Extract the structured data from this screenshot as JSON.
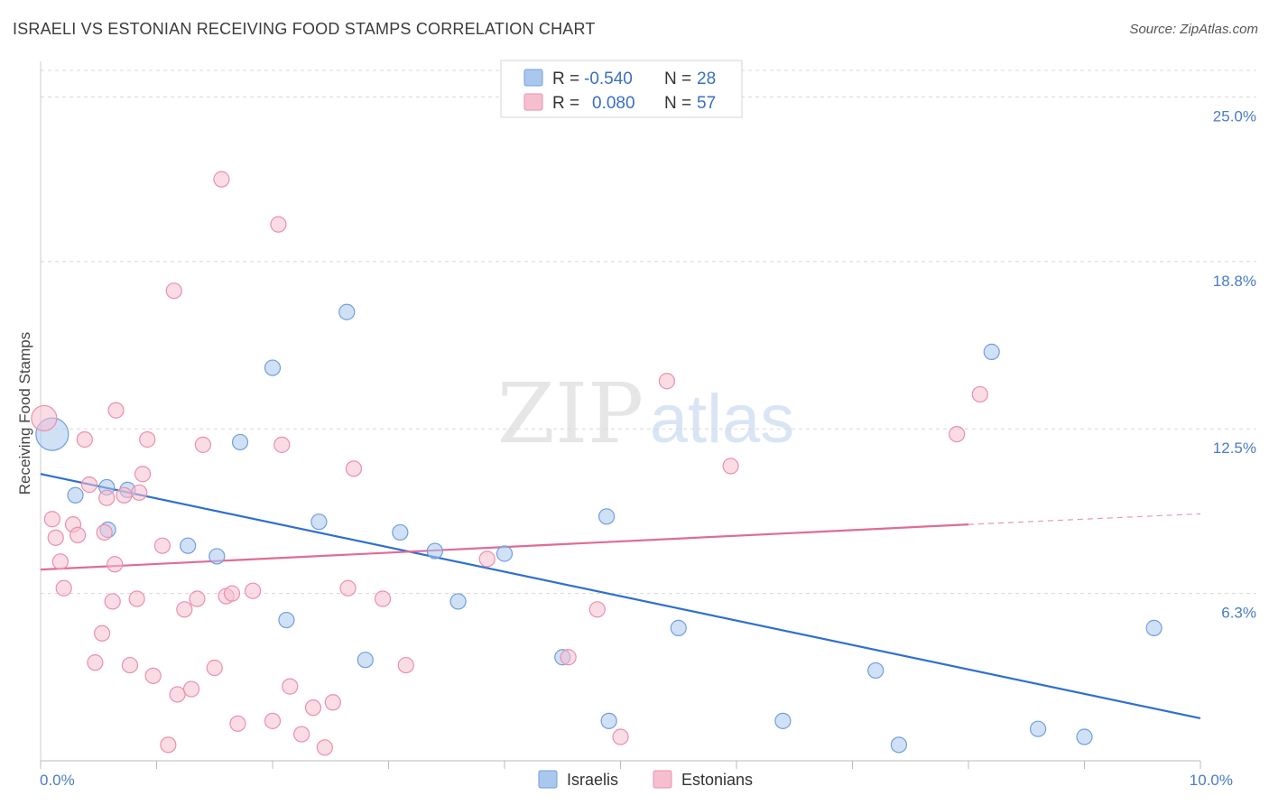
{
  "title": "ISRAELI VS ESTONIAN RECEIVING FOOD STAMPS CORRELATION CHART",
  "source": "Source: ZipAtlas.com",
  "watermark": {
    "zip": "ZIP",
    "atlas": "atlas"
  },
  "colors": {
    "israeli_fill": "#aac8ee",
    "israeli_stroke": "#6f9ee0",
    "israeli_line": "#2f6fd0",
    "estonian_fill": "#f6bfd0",
    "estonian_stroke": "#ec8fac",
    "estonian_line": "#e06b96",
    "grid": "#d8d8d8",
    "axis_text": "#4a7cc4"
  },
  "chart_data": {
    "type": "scatter",
    "title": "ISRAELI VS ESTONIAN RECEIVING FOOD STAMPS CORRELATION CHART",
    "xlabel": "",
    "ylabel": "Receiving Food Stamps",
    "xlim": [
      0,
      10
    ],
    "ylim": [
      0,
      26
    ],
    "x_tick_labels": [
      {
        "value": 0,
        "label": "0.0%"
      },
      {
        "value": 10,
        "label": "10.0%"
      }
    ],
    "y_tick_labels": [
      {
        "value": 6.3,
        "label": "6.3%"
      },
      {
        "value": 12.5,
        "label": "12.5%"
      },
      {
        "value": 18.8,
        "label": "18.8%"
      },
      {
        "value": 25.0,
        "label": "25.0%"
      }
    ],
    "grid": "horizontal dashed",
    "legend_top": [
      {
        "series": "Israelis",
        "r_label": "R =",
        "r_value": "-0.540",
        "n_label": "N =",
        "n_value": "28"
      },
      {
        "series": "Estonians",
        "r_label": "R =",
        "r_value": "0.080",
        "n_label": "N =",
        "n_value": "57"
      }
    ],
    "legend_bottom": [
      "Israelis",
      "Estonians"
    ],
    "series": [
      {
        "name": "Israelis",
        "points": [
          [
            0.1,
            12.3
          ],
          [
            0.3,
            10.0
          ],
          [
            0.57,
            10.3
          ],
          [
            0.58,
            8.7
          ],
          [
            0.75,
            10.2
          ],
          [
            1.27,
            8.1
          ],
          [
            1.52,
            7.7
          ],
          [
            1.72,
            12.0
          ],
          [
            2.0,
            14.8
          ],
          [
            2.12,
            5.3
          ],
          [
            2.4,
            9.0
          ],
          [
            2.64,
            16.9
          ],
          [
            2.8,
            3.8
          ],
          [
            3.1,
            8.6
          ],
          [
            3.6,
            6.0
          ],
          [
            4.0,
            7.8
          ],
          [
            4.5,
            3.9
          ],
          [
            4.88,
            9.2
          ],
          [
            4.9,
            1.5
          ],
          [
            5.5,
            5.0
          ],
          [
            6.4,
            1.5
          ],
          [
            7.2,
            3.4
          ],
          [
            7.4,
            0.6
          ],
          [
            8.2,
            15.4
          ],
          [
            8.6,
            1.2
          ],
          [
            9.0,
            0.9
          ],
          [
            9.6,
            5.0
          ],
          [
            3.4,
            7.9
          ]
        ],
        "trend": {
          "x": [
            0,
            10
          ],
          "y": [
            10.8,
            1.6
          ]
        }
      },
      {
        "name": "Estonians",
        "points": [
          [
            0.03,
            12.9
          ],
          [
            0.1,
            9.1
          ],
          [
            0.13,
            8.4
          ],
          [
            0.17,
            7.5
          ],
          [
            0.2,
            6.5
          ],
          [
            0.28,
            8.9
          ],
          [
            0.32,
            8.5
          ],
          [
            0.38,
            12.1
          ],
          [
            0.42,
            10.4
          ],
          [
            0.47,
            3.7
          ],
          [
            0.53,
            4.8
          ],
          [
            0.55,
            8.6
          ],
          [
            0.62,
            6.0
          ],
          [
            0.64,
            7.4
          ],
          [
            0.65,
            13.2
          ],
          [
            0.72,
            10.0
          ],
          [
            0.77,
            3.6
          ],
          [
            0.83,
            6.1
          ],
          [
            0.85,
            10.1
          ],
          [
            0.88,
            10.8
          ],
          [
            0.92,
            12.1
          ],
          [
            0.97,
            3.2
          ],
          [
            1.05,
            8.1
          ],
          [
            1.1,
            0.6
          ],
          [
            1.15,
            17.7
          ],
          [
            1.18,
            2.5
          ],
          [
            1.24,
            5.7
          ],
          [
            1.3,
            2.7
          ],
          [
            1.35,
            6.1
          ],
          [
            1.4,
            11.9
          ],
          [
            1.5,
            3.5
          ],
          [
            1.56,
            21.9
          ],
          [
            1.6,
            6.2
          ],
          [
            1.65,
            6.3
          ],
          [
            1.7,
            1.4
          ],
          [
            1.83,
            6.4
          ],
          [
            2.0,
            1.5
          ],
          [
            2.05,
            20.2
          ],
          [
            2.08,
            11.9
          ],
          [
            2.15,
            2.8
          ],
          [
            2.25,
            1.0
          ],
          [
            2.35,
            2.0
          ],
          [
            2.45,
            0.5
          ],
          [
            2.52,
            2.2
          ],
          [
            2.65,
            6.5
          ],
          [
            2.7,
            11.0
          ],
          [
            2.95,
            6.1
          ],
          [
            3.15,
            3.6
          ],
          [
            3.85,
            7.6
          ],
          [
            4.55,
            3.9
          ],
          [
            4.8,
            5.7
          ],
          [
            5.0,
            0.9
          ],
          [
            5.4,
            14.3
          ],
          [
            5.95,
            11.1
          ],
          [
            7.9,
            12.3
          ],
          [
            8.1,
            13.8
          ],
          [
            0.57,
            9.9
          ]
        ],
        "trend": {
          "x": [
            0,
            8.0
          ],
          "y": [
            7.2,
            8.9
          ]
        },
        "trend_dashed": {
          "x": [
            8.0,
            10
          ],
          "y": [
            8.9,
            9.3
          ]
        }
      }
    ]
  }
}
